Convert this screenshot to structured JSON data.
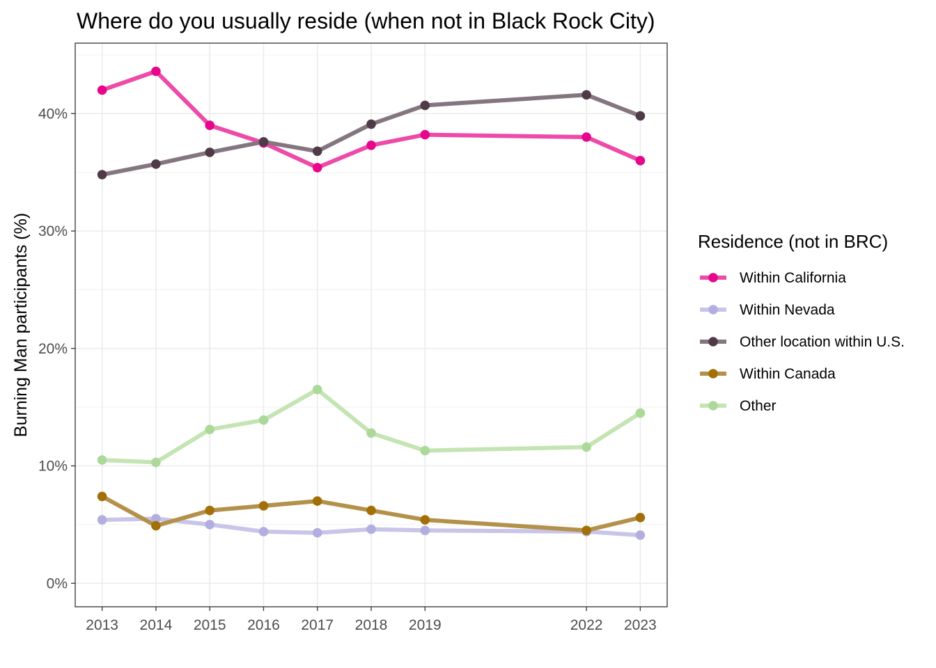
{
  "chart_data": {
    "type": "line",
    "title": "Where do you usually reside (when not in Black Rock City)",
    "xlabel": "",
    "ylabel": "Burning Man participants (%)",
    "x": [
      2013,
      2014,
      2015,
      2016,
      2017,
      2018,
      2019,
      2022,
      2023
    ],
    "x_tick_labels": [
      "2013",
      "2014",
      "2015",
      "2016",
      "2017",
      "2018",
      "2019",
      "2022",
      "2023"
    ],
    "y_ticks": [
      0,
      10,
      20,
      30,
      40
    ],
    "y_tick_labels": [
      "0%",
      "10%",
      "20%",
      "30%",
      "40%"
    ],
    "xlim": [
      2012.5,
      2023.5
    ],
    "ylim": [
      -2,
      46
    ],
    "grid": true,
    "legend": {
      "title": "Residence (not in BRC)",
      "position": "right"
    },
    "series": [
      {
        "name": "Within California",
        "line_color": "#ee4aa8",
        "point_color": "#e7058b",
        "values": [
          42.0,
          43.6,
          39.0,
          37.5,
          35.4,
          37.3,
          38.2,
          38.0,
          36.0
        ]
      },
      {
        "name": "Within Nevada",
        "line_color": "#c8c5e8",
        "point_color": "#b2aee0",
        "values": [
          5.4,
          5.5,
          5.0,
          4.4,
          4.3,
          4.6,
          4.5,
          4.4,
          4.1
        ]
      },
      {
        "name": "Other location within U.S.",
        "line_color": "#84767f",
        "point_color": "#4f3b47",
        "values": [
          34.8,
          35.7,
          36.7,
          37.6,
          36.8,
          39.1,
          40.7,
          41.6,
          39.8
        ]
      },
      {
        "name": "Within Canada",
        "line_color": "#b4914a",
        "point_color": "#a26f09",
        "values": [
          7.4,
          4.9,
          6.2,
          6.6,
          7.0,
          6.2,
          5.4,
          4.5,
          5.6
        ]
      },
      {
        "name": "Other",
        "line_color": "#c5e4b3",
        "point_color": "#acd99a",
        "values": [
          10.5,
          10.3,
          13.1,
          13.9,
          16.5,
          12.8,
          11.3,
          11.6,
          14.5
        ]
      }
    ]
  }
}
